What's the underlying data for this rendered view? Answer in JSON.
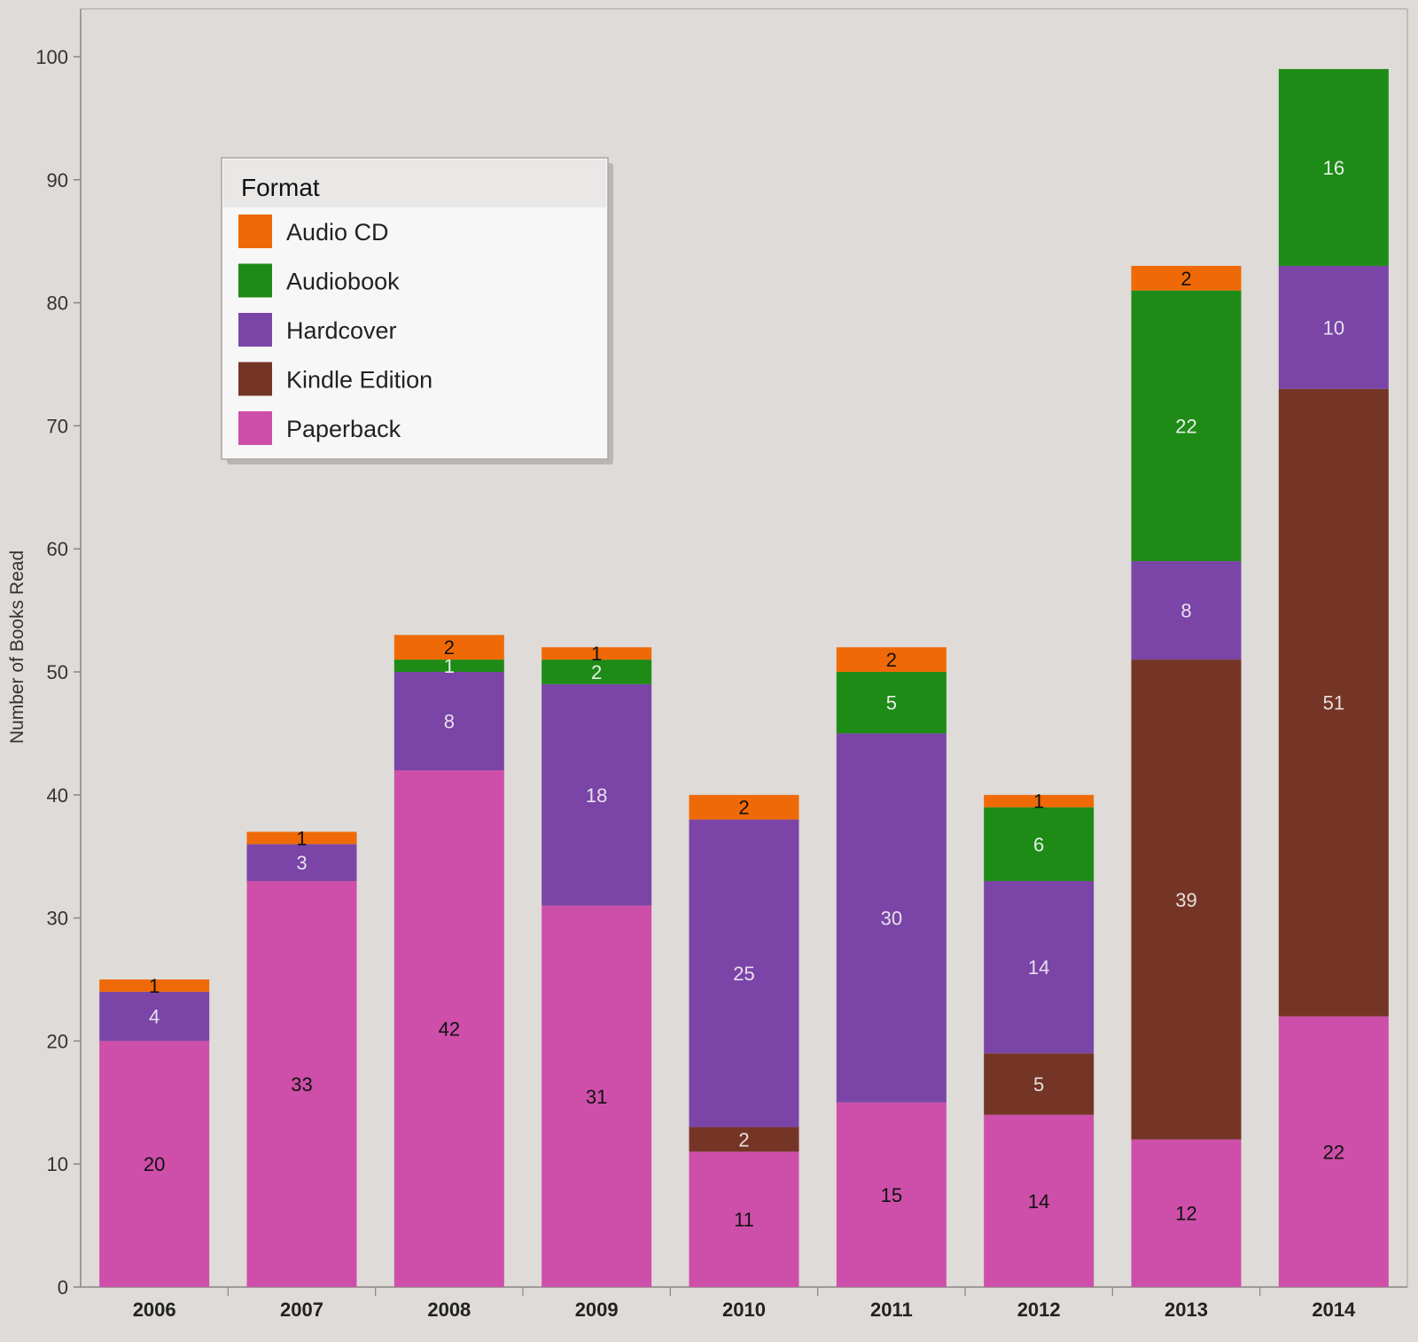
{
  "chart_data": {
    "type": "bar",
    "stacked": true,
    "categories": [
      "2006",
      "2007",
      "2008",
      "2009",
      "2010",
      "2011",
      "2012",
      "2013",
      "2014"
    ],
    "ylabel": "Number of Books Read",
    "xlabel": "",
    "ylim": [
      0,
      100
    ],
    "yticks": [
      0,
      10,
      20,
      30,
      40,
      50,
      60,
      70,
      80,
      90,
      100
    ],
    "grid": false,
    "legend": {
      "title": "Format",
      "position": "top-left"
    },
    "series": [
      {
        "name": "Paperback",
        "color": "#cd4fa9",
        "label_color": "#111111",
        "values": [
          20,
          33,
          42,
          31,
          11,
          15,
          14,
          12,
          22
        ]
      },
      {
        "name": "Kindle Edition",
        "color": "#743526",
        "label_color": "#e8e0dc",
        "values": [
          0,
          0,
          0,
          0,
          2,
          0,
          5,
          39,
          51
        ]
      },
      {
        "name": "Hardcover",
        "color": "#7a45a6",
        "label_color": "#e8e0f0",
        "values": [
          4,
          3,
          8,
          18,
          25,
          30,
          14,
          8,
          10
        ]
      },
      {
        "name": "Audiobook",
        "color": "#1e8b17",
        "label_color": "#e8f0e8",
        "values": [
          0,
          0,
          1,
          2,
          0,
          5,
          6,
          22,
          16
        ]
      },
      {
        "name": "Audio CD",
        "color": "#ef6a06",
        "label_color": "#111111",
        "values": [
          1,
          1,
          2,
          1,
          2,
          2,
          1,
          2,
          0
        ]
      }
    ],
    "legend_order": [
      "Audio CD",
      "Audiobook",
      "Hardcover",
      "Kindle Edition",
      "Paperback"
    ]
  }
}
